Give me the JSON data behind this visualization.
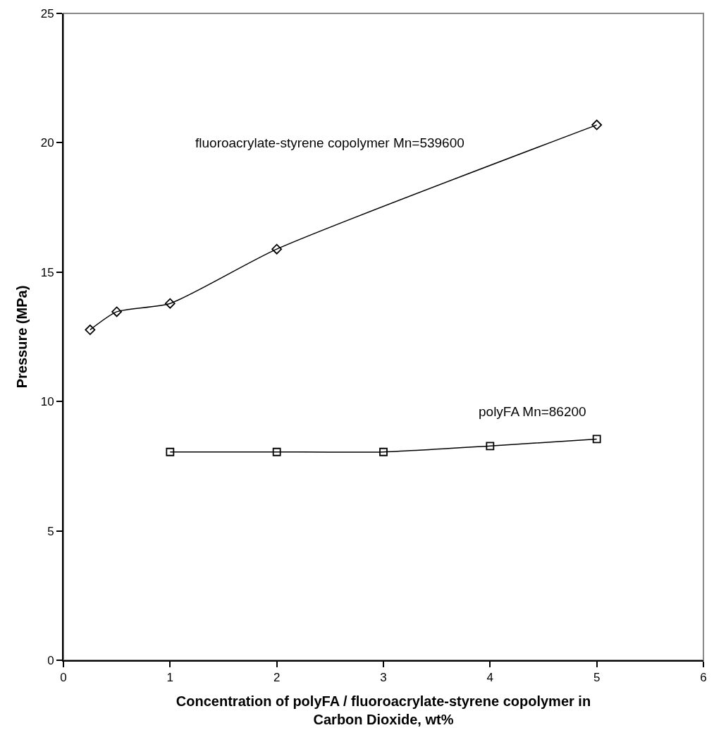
{
  "chart_data": {
    "type": "line",
    "xlabel": "Concentration of polyFA / fluoroacrylate-styrene copolymer in Carbon Dioxide, wt%",
    "ylabel": "Pressure (MPa)",
    "xlim": [
      0,
      6
    ],
    "xticks": [
      0,
      1,
      2,
      3,
      4,
      5,
      6
    ],
    "ylim": [
      0,
      25
    ],
    "yticks": [
      0,
      5,
      10,
      15,
      20,
      25
    ],
    "grid": false,
    "legend": false,
    "line_style": "solid",
    "series": [
      {
        "name": "fluoroacrylate-styrene copolymer Mn=539600",
        "color": "#000000",
        "marker": "diamond",
        "x": [
          0.25,
          0.5,
          1,
          2,
          5
        ],
        "values": [
          12.77,
          13.47,
          13.79,
          15.89,
          20.69
        ]
      },
      {
        "name": "polyFA Mn=86200",
        "color": "#000000",
        "marker": "square",
        "x": [
          1,
          2,
          3,
          4,
          5
        ],
        "values": [
          8.05,
          8.05,
          8.05,
          8.28,
          8.55
        ]
      }
    ]
  }
}
